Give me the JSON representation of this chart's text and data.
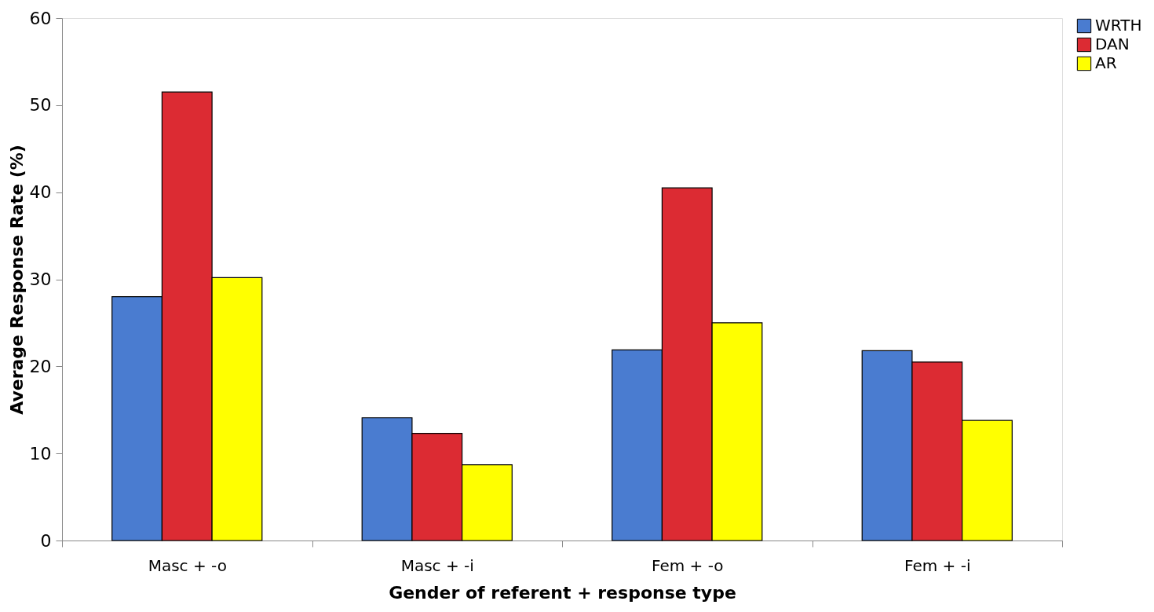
{
  "chart_data": {
    "type": "bar",
    "xlabel": "Gender of referent + response type",
    "ylabel": "Average Response Rate (%)",
    "categories": [
      "Masc + -o",
      "Masc + -i",
      "Fem + -o",
      "Fem + -i"
    ],
    "series": [
      {
        "name": "WRTH",
        "color": "#4a7cd0",
        "values": [
          28.0,
          14.1,
          21.9,
          21.8
        ]
      },
      {
        "name": "DAN",
        "color": "#dc2b33",
        "values": [
          51.5,
          12.3,
          40.5,
          20.5
        ]
      },
      {
        "name": "AR",
        "color": "#ffff00",
        "values": [
          30.2,
          8.7,
          25.0,
          13.8
        ]
      }
    ],
    "ylim": [
      0,
      60
    ],
    "yticks": [
      0,
      10,
      20,
      30,
      40,
      50,
      60
    ],
    "grid": false,
    "legend": "right"
  }
}
